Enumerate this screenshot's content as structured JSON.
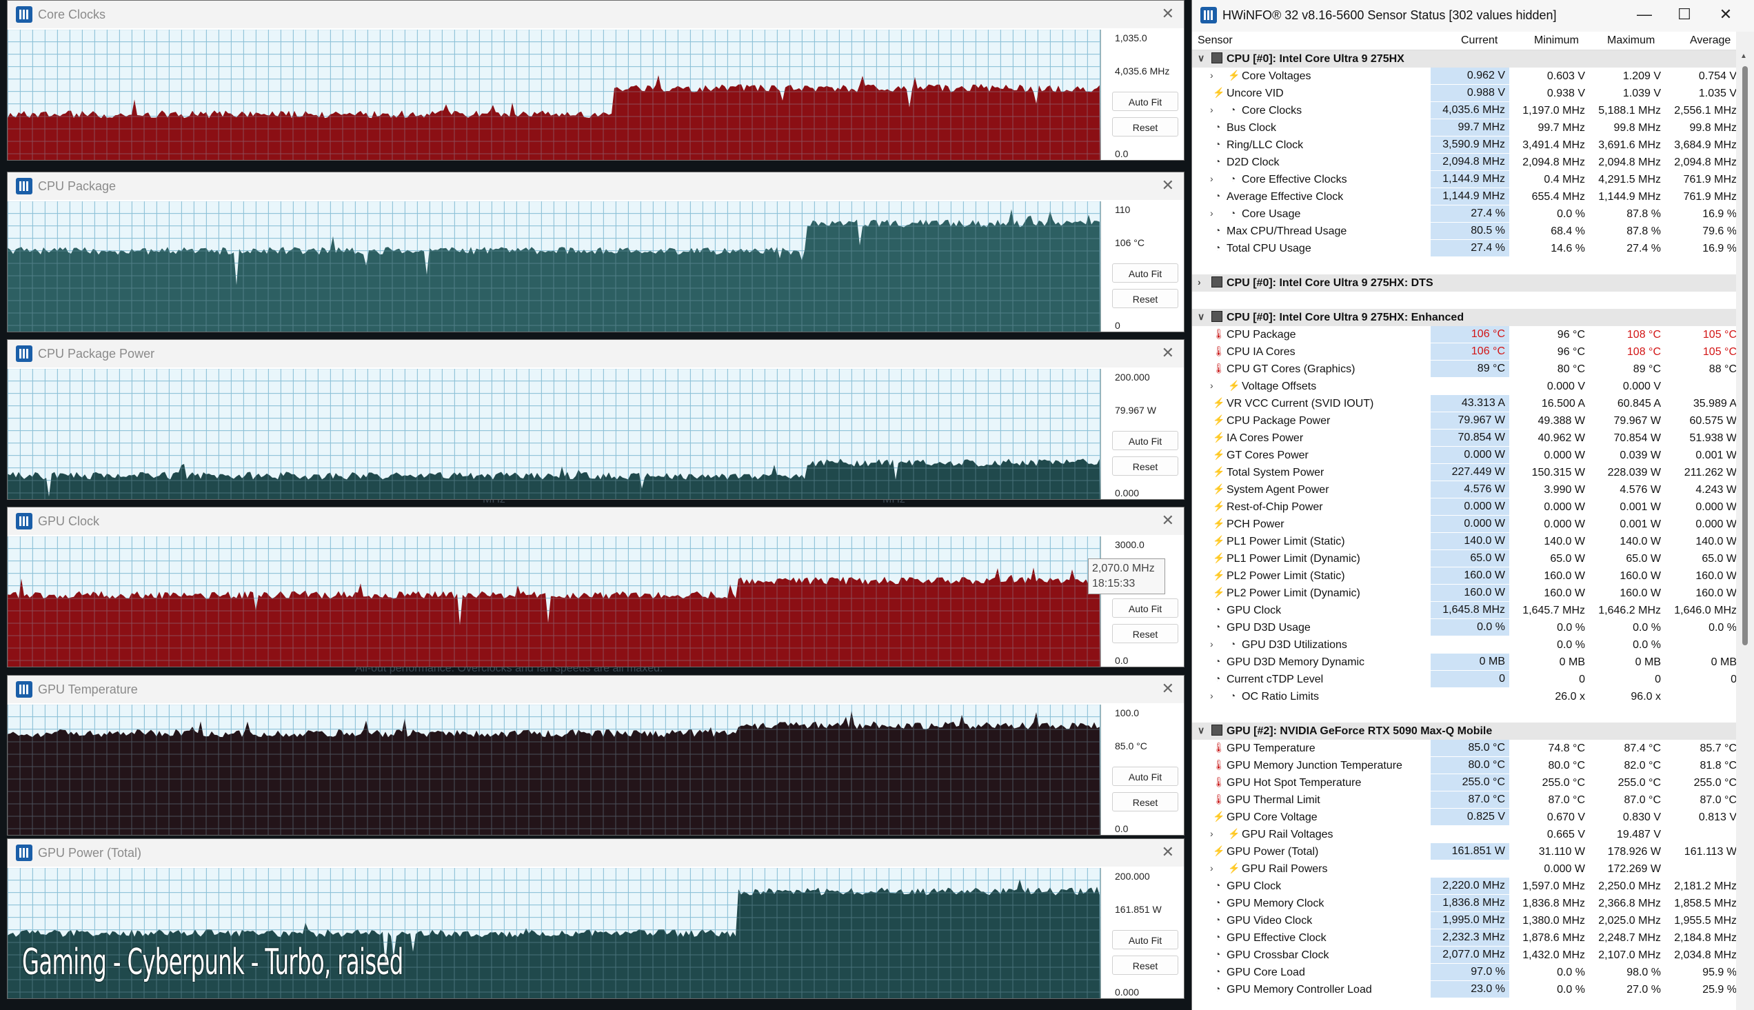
{
  "graphs": [
    {
      "title": "Core Clocks",
      "top": "1,035.0",
      "current": "4,035.6 MHz",
      "bottom": "0.0",
      "color": "#8b0f14",
      "base": 0.35,
      "bursts": [
        [
          880,
          0.55
        ],
        [
          1050,
          0.55
        ]
      ],
      "top_line": true
    },
    {
      "title": "CPU Package",
      "top": "110",
      "current": "106 °C",
      "bottom": "0",
      "color": "#2d5f62",
      "base": 0.62,
      "bursts": [
        [
          1160,
          0.83
        ]
      ],
      "top_line": false
    },
    {
      "title": "CPU Package Power",
      "top": "200.000",
      "current": "79.967 W",
      "bottom": "0.000",
      "color": "#20494c",
      "base": 0.18,
      "bursts": [
        [
          1160,
          0.28
        ]
      ],
      "top_line": false
    },
    {
      "title": "GPU Clock",
      "top": "3000.0",
      "current": "",
      "bottom": "0.0",
      "color": "#8b0f14",
      "base": 0.55,
      "bursts": [
        [
          1060,
          0.66
        ]
      ],
      "top_line": false
    },
    {
      "title": "GPU Temperature",
      "top": "100.0",
      "current": "85.0 °C",
      "bottom": "0.0",
      "color": "#231419",
      "base": 0.78,
      "bursts": [
        [
          1060,
          0.84
        ]
      ],
      "top_line": false
    },
    {
      "title": "GPU Power (Total)",
      "top": "200.000",
      "current": "161.851 W",
      "bottom": "0.000",
      "color": "#20494c",
      "base": 0.5,
      "bursts": [
        [
          1060,
          0.82
        ]
      ],
      "top_line": false
    }
  ],
  "buttons": {
    "autofit": "Auto Fit",
    "reset": "Reset"
  },
  "tooltip": {
    "value": "2,070.0 MHz",
    "time": "18:15:33"
  },
  "caption": "Gaming - Cyberpunk - Turbo, raised",
  "ghost": {
    "mhz1": "MHz",
    "mhz2": "MHz",
    "perf": "All-out performance. Overclocks and fan speeds are all maxed."
  },
  "hw": {
    "title": "HWiNFO® 32 v8.16-5600 Sensor Status [302 values hidden]",
    "headers": {
      "sensor": "Sensor",
      "current": "Current",
      "minimum": "Minimum",
      "maximum": "Maximum",
      "average": "Average"
    },
    "rows": [
      {
        "type": "group",
        "name": "CPU [#0]: Intel Core Ultra 9 275HX",
        "open": true
      },
      {
        "chev": true,
        "icon": "bolt",
        "name": "Core Voltages",
        "cur": "0.962 V",
        "min": "0.603 V",
        "max": "1.209 V",
        "avg": "0.754 V",
        "indent": 2
      },
      {
        "icon": "bolt",
        "name": "Uncore VID",
        "cur": "0.988 V",
        "min": "0.938 V",
        "max": "1.039 V",
        "avg": "1.035 V",
        "indent": 1
      },
      {
        "chev": true,
        "icon": "clock",
        "name": "Core Clocks",
        "cur": "4,035.6 MHz",
        "min": "1,197.0 MHz",
        "max": "5,188.1 MHz",
        "avg": "2,556.1 MHz",
        "indent": 2
      },
      {
        "icon": "clock",
        "name": "Bus Clock",
        "cur": "99.7 MHz",
        "min": "99.7 MHz",
        "max": "99.8 MHz",
        "avg": "99.8 MHz",
        "indent": 1
      },
      {
        "icon": "clock",
        "name": "Ring/LLC Clock",
        "cur": "3,590.9 MHz",
        "min": "3,491.4 MHz",
        "max": "3,691.6 MHz",
        "avg": "3,684.9 MHz",
        "indent": 1
      },
      {
        "icon": "clock",
        "name": "D2D Clock",
        "cur": "2,094.8 MHz",
        "min": "2,094.8 MHz",
        "max": "2,094.8 MHz",
        "avg": "2,094.8 MHz",
        "indent": 1
      },
      {
        "chev": true,
        "icon": "clock",
        "name": "Core Effective Clocks",
        "cur": "1,144.9 MHz",
        "min": "0.4 MHz",
        "max": "4,291.5 MHz",
        "avg": "761.9 MHz",
        "indent": 2
      },
      {
        "icon": "clock",
        "name": "Average Effective Clock",
        "cur": "1,144.9 MHz",
        "min": "655.4 MHz",
        "max": "1,144.9 MHz",
        "avg": "761.9 MHz",
        "indent": 1
      },
      {
        "chev": true,
        "icon": "clock",
        "name": "Core Usage",
        "cur": "27.4 %",
        "min": "0.0 %",
        "max": "87.8 %",
        "avg": "16.9 %",
        "indent": 2
      },
      {
        "icon": "clock",
        "name": "Max CPU/Thread Usage",
        "cur": "80.5 %",
        "min": "68.4 %",
        "max": "87.8 %",
        "avg": "79.6 %",
        "indent": 1
      },
      {
        "icon": "clock",
        "name": "Total CPU Usage",
        "cur": "27.4 %",
        "min": "14.6 %",
        "max": "27.4 %",
        "avg": "16.9 %",
        "indent": 1
      },
      {
        "type": "blank"
      },
      {
        "type": "group",
        "name": "CPU [#0]: Intel Core Ultra 9 275HX: DTS",
        "open": false
      },
      {
        "type": "blank"
      },
      {
        "type": "group",
        "name": "CPU [#0]: Intel Core Ultra 9 275HX: Enhanced",
        "open": true
      },
      {
        "icon": "therm",
        "name": "CPU Package",
        "cur": "106 °C",
        "min": "96 °C",
        "max": "108 °C",
        "avg": "105 °C",
        "indent": 1,
        "alarm": true
      },
      {
        "icon": "therm",
        "name": "CPU IA Cores",
        "cur": "106 °C",
        "min": "96 °C",
        "max": "108 °C",
        "avg": "105 °C",
        "indent": 1,
        "alarm": true
      },
      {
        "icon": "therm",
        "name": "CPU GT Cores (Graphics)",
        "cur": "89 °C",
        "min": "80 °C",
        "max": "89 °C",
        "avg": "88 °C",
        "indent": 1
      },
      {
        "chev": true,
        "icon": "bolt",
        "name": "Voltage Offsets",
        "cur": "",
        "min": "0.000 V",
        "max": "0.000 V",
        "avg": "",
        "indent": 2
      },
      {
        "icon": "bolt",
        "name": "VR VCC Current (SVID IOUT)",
        "cur": "43.313 A",
        "min": "16.500 A",
        "max": "60.845 A",
        "avg": "35.989 A",
        "indent": 1
      },
      {
        "icon": "bolt",
        "name": "CPU Package Power",
        "cur": "79.967 W",
        "min": "49.388 W",
        "max": "79.967 W",
        "avg": "60.575 W",
        "indent": 1
      },
      {
        "icon": "bolt",
        "name": "IA Cores Power",
        "cur": "70.854 W",
        "min": "40.962 W",
        "max": "70.854 W",
        "avg": "51.938 W",
        "indent": 1
      },
      {
        "icon": "bolt",
        "name": "GT Cores Power",
        "cur": "0.000 W",
        "min": "0.000 W",
        "max": "0.039 W",
        "avg": "0.001 W",
        "indent": 1
      },
      {
        "icon": "bolt",
        "name": "Total System Power",
        "cur": "227.449 W",
        "min": "150.315 W",
        "max": "228.039 W",
        "avg": "211.262 W",
        "indent": 1
      },
      {
        "icon": "bolt",
        "name": "System Agent Power",
        "cur": "4.576 W",
        "min": "3.990 W",
        "max": "4.576 W",
        "avg": "4.243 W",
        "indent": 1
      },
      {
        "icon": "bolt",
        "name": "Rest-of-Chip Power",
        "cur": "0.000 W",
        "min": "0.000 W",
        "max": "0.001 W",
        "avg": "0.000 W",
        "indent": 1
      },
      {
        "icon": "bolt",
        "name": "PCH Power",
        "cur": "0.000 W",
        "min": "0.000 W",
        "max": "0.001 W",
        "avg": "0.000 W",
        "indent": 1
      },
      {
        "icon": "bolt",
        "name": "PL1 Power Limit (Static)",
        "cur": "140.0 W",
        "min": "140.0 W",
        "max": "140.0 W",
        "avg": "140.0 W",
        "indent": 1
      },
      {
        "icon": "bolt",
        "name": "PL1 Power Limit (Dynamic)",
        "cur": "65.0 W",
        "min": "65.0 W",
        "max": "65.0 W",
        "avg": "65.0 W",
        "indent": 1
      },
      {
        "icon": "bolt",
        "name": "PL2 Power Limit (Static)",
        "cur": "160.0 W",
        "min": "160.0 W",
        "max": "160.0 W",
        "avg": "160.0 W",
        "indent": 1
      },
      {
        "icon": "bolt",
        "name": "PL2 Power Limit (Dynamic)",
        "cur": "160.0 W",
        "min": "160.0 W",
        "max": "160.0 W",
        "avg": "160.0 W",
        "indent": 1
      },
      {
        "icon": "clock",
        "name": "GPU Clock",
        "cur": "1,645.8 MHz",
        "min": "1,645.7 MHz",
        "max": "1,646.2 MHz",
        "avg": "1,646.0 MHz",
        "indent": 1
      },
      {
        "icon": "clock",
        "name": "GPU D3D Usage",
        "cur": "0.0 %",
        "min": "0.0 %",
        "max": "0.0 %",
        "avg": "0.0 %",
        "indent": 1
      },
      {
        "chev": true,
        "icon": "clock",
        "name": "GPU D3D Utilizations",
        "cur": "",
        "min": "0.0 %",
        "max": "0.0 %",
        "avg": "",
        "indent": 2
      },
      {
        "icon": "clock",
        "name": "GPU D3D Memory Dynamic",
        "cur": "0 MB",
        "min": "0 MB",
        "max": "0 MB",
        "avg": "0 MB",
        "indent": 1
      },
      {
        "icon": "clock",
        "name": "Current cTDP Level",
        "cur": "0",
        "min": "0",
        "max": "0",
        "avg": "0",
        "indent": 1
      },
      {
        "chev": true,
        "icon": "clock",
        "name": "OC Ratio Limits",
        "cur": "",
        "min": "26.0 x",
        "max": "96.0 x",
        "avg": "",
        "indent": 2
      },
      {
        "type": "blank"
      },
      {
        "type": "group",
        "name": "GPU [#2]: NVIDIA  GeForce RTX 5090 Max-Q Mobile",
        "open": true
      },
      {
        "icon": "therm",
        "name": "GPU Temperature",
        "cur": "85.0 °C",
        "min": "74.8 °C",
        "max": "87.4 °C",
        "avg": "85.7 °C",
        "indent": 1
      },
      {
        "icon": "therm",
        "name": "GPU Memory Junction Temperature",
        "cur": "80.0 °C",
        "min": "80.0 °C",
        "max": "82.0 °C",
        "avg": "81.8 °C",
        "indent": 1
      },
      {
        "icon": "therm",
        "name": "GPU Hot Spot Temperature",
        "cur": "255.0 °C",
        "min": "255.0 °C",
        "max": "255.0 °C",
        "avg": "255.0 °C",
        "indent": 1
      },
      {
        "icon": "therm",
        "name": "GPU Thermal Limit",
        "cur": "87.0 °C",
        "min": "87.0 °C",
        "max": "87.0 °C",
        "avg": "87.0 °C",
        "indent": 1
      },
      {
        "icon": "bolt",
        "name": "GPU Core Voltage",
        "cur": "0.825 V",
        "min": "0.670 V",
        "max": "0.830 V",
        "avg": "0.813 V",
        "indent": 1
      },
      {
        "chev": true,
        "icon": "bolt",
        "name": "GPU Rail Voltages",
        "cur": "",
        "min": "0.665 V",
        "max": "19.487 V",
        "avg": "",
        "indent": 2
      },
      {
        "icon": "bolt",
        "name": "GPU Power (Total)",
        "cur": "161.851 W",
        "min": "31.110 W",
        "max": "178.926 W",
        "avg": "161.113 W",
        "indent": 1
      },
      {
        "chev": true,
        "icon": "bolt",
        "name": "GPU Rail Powers",
        "cur": "",
        "min": "0.000 W",
        "max": "172.269 W",
        "avg": "",
        "indent": 2
      },
      {
        "icon": "clock",
        "name": "GPU Clock",
        "cur": "2,220.0 MHz",
        "min": "1,597.0 MHz",
        "max": "2,250.0 MHz",
        "avg": "2,181.2 MHz",
        "indent": 1
      },
      {
        "icon": "clock",
        "name": "GPU Memory Clock",
        "cur": "1,836.8 MHz",
        "min": "1,836.8 MHz",
        "max": "2,366.8 MHz",
        "avg": "1,858.5 MHz",
        "indent": 1
      },
      {
        "icon": "clock",
        "name": "GPU Video Clock",
        "cur": "1,995.0 MHz",
        "min": "1,380.0 MHz",
        "max": "2,025.0 MHz",
        "avg": "1,955.5 MHz",
        "indent": 1
      },
      {
        "icon": "clock",
        "name": "GPU Effective Clock",
        "cur": "2,232.3 MHz",
        "min": "1,878.6 MHz",
        "max": "2,248.7 MHz",
        "avg": "2,184.8 MHz",
        "indent": 1
      },
      {
        "icon": "clock",
        "name": "GPU Crossbar Clock",
        "cur": "2,077.0 MHz",
        "min": "1,432.0 MHz",
        "max": "2,107.0 MHz",
        "avg": "2,034.8 MHz",
        "indent": 1
      },
      {
        "icon": "clock",
        "name": "GPU Core Load",
        "cur": "97.0 %",
        "min": "0.0 %",
        "max": "98.0 %",
        "avg": "95.9 %",
        "indent": 1
      },
      {
        "icon": "clock",
        "name": "GPU Memory Controller Load",
        "cur": "23.0 %",
        "min": "0.0 %",
        "max": "27.0 %",
        "avg": "25.9 %",
        "indent": 1
      }
    ]
  }
}
